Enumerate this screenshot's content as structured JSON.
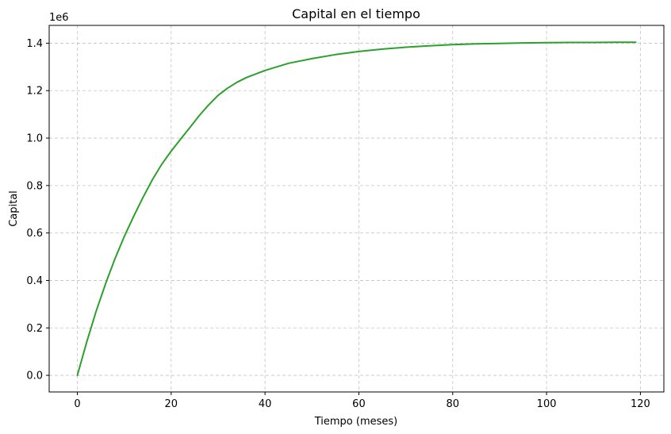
{
  "chart_data": {
    "type": "line",
    "title": "Capital en el tiempo",
    "xlabel": "Tiempo (meses)",
    "ylabel": "Capital",
    "y_offset_label": "1e6",
    "xlim": [
      -6,
      125
    ],
    "ylim": [
      -0.07,
      1.475
    ],
    "x_ticks": [
      0,
      20,
      40,
      60,
      80,
      100,
      120
    ],
    "y_ticks": [
      0.0,
      0.2,
      0.4,
      0.6,
      0.8,
      1.0,
      1.2,
      1.4
    ],
    "x_tick_labels": [
      "0",
      "20",
      "40",
      "60",
      "80",
      "100",
      "120"
    ],
    "y_tick_labels": [
      "0.0",
      "0.2",
      "0.4",
      "0.6",
      "0.8",
      "1.0",
      "1.2",
      "1.4"
    ],
    "grid": true,
    "series": [
      {
        "color": "#2ca02c",
        "x": [
          0,
          2,
          4,
          6,
          8,
          10,
          12,
          14,
          16,
          18,
          20,
          22,
          24,
          26,
          28,
          30,
          32,
          34,
          36,
          38,
          40,
          45,
          50,
          55,
          60,
          65,
          70,
          75,
          80,
          85,
          90,
          95,
          100,
          105,
          110,
          115,
          119
        ],
        "y": [
          0.0,
          0.14,
          0.27,
          0.385,
          0.49,
          0.585,
          0.67,
          0.75,
          0.825,
          0.89,
          0.945,
          0.995,
          1.045,
          1.095,
          1.14,
          1.18,
          1.21,
          1.235,
          1.255,
          1.27,
          1.285,
          1.315,
          1.335,
          1.352,
          1.365,
          1.375,
          1.383,
          1.389,
          1.394,
          1.397,
          1.399,
          1.401,
          1.402,
          1.403,
          1.403,
          1.404,
          1.404
        ]
      }
    ]
  }
}
